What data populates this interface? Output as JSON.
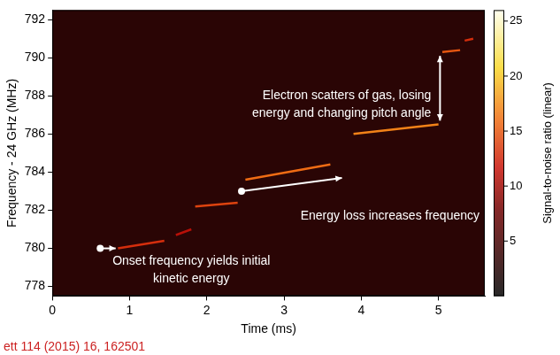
{
  "chart_data": {
    "type": "spectrogram",
    "xlabel": "Time (ms)",
    "ylabel": "Frequency - 24 GHz (MHz)",
    "xlim": [
      0,
      5.6
    ],
    "xticks": [
      0,
      1,
      2,
      3,
      4,
      5
    ],
    "ylim": [
      777.5,
      792.5
    ],
    "yticks": [
      778,
      780,
      782,
      784,
      786,
      788,
      790,
      792
    ],
    "grid": false,
    "tracks": [
      {
        "x": [
          0.85,
          1.45
        ],
        "y": [
          780.0,
          780.4
        ],
        "snr": 13
      },
      {
        "x": [
          1.6,
          1.8
        ],
        "y": [
          780.7,
          781.0
        ],
        "snr": 11
      },
      {
        "x": [
          1.85,
          2.4
        ],
        "y": [
          782.2,
          782.4
        ],
        "snr": 14
      },
      {
        "x": [
          2.5,
          3.6
        ],
        "y": [
          783.6,
          784.4
        ],
        "snr": 16
      },
      {
        "x": [
          3.9,
          5.0
        ],
        "y": [
          786.0,
          786.5
        ],
        "snr": 17
      },
      {
        "x": [
          5.05,
          5.28
        ],
        "y": [
          790.3,
          790.4
        ],
        "snr": 15
      },
      {
        "x": [
          5.34,
          5.45
        ],
        "y": [
          790.9,
          791.0
        ],
        "snr": 13
      }
    ],
    "colorbar": {
      "label": "Signal-to-noise ratio (linear)",
      "range": [
        0,
        26
      ],
      "ticks": [
        5,
        10,
        15,
        20,
        25
      ]
    },
    "annotations": [
      {
        "text": [
          "Electron scatters of gas, losing",
          "energy and changing pitch angle"
        ]
      },
      {
        "text": [
          "Energy loss increases frequency"
        ]
      },
      {
        "text": [
          "Onset frequency yields initial",
          "kinetic energy"
        ]
      }
    ],
    "footnote": "ett 114 (2015) 16, 162501"
  }
}
